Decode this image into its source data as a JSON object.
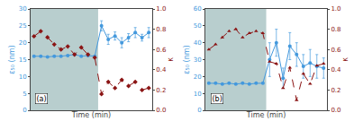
{
  "chart_data": [
    {
      "type": "line",
      "x": [
        0,
        1,
        2,
        3,
        4,
        5,
        6,
        7,
        8,
        9,
        10,
        11,
        12,
        13,
        14,
        15,
        16,
        17
      ],
      "xlabel": "Time (min)",
      "ylabel": "ε₅₀ (nm)",
      "y2label": "κ",
      "xlim": [
        -0.5,
        17.5
      ],
      "xticks": [],
      "ylim": [
        0,
        30
      ],
      "yticks": [
        0,
        5,
        10,
        15,
        20,
        25,
        30
      ],
      "y2lim": [
        0.0,
        1.0
      ],
      "y2ticks": [
        {
          "value": 0.0,
          "label": "0.0"
        },
        0.2,
        0.4,
        0.6,
        0.8,
        {
          "value": 1.0,
          "label": "1.0"
        }
      ],
      "tick_labels": "y",
      "grid": false,
      "series": [
        {
          "axis": "y2",
          "color": "#8B1515",
          "marker": "diamond",
          "line_style": "dashed",
          "values": [
            0.73,
            0.78,
            0.72,
            0.65,
            0.6,
            0.63,
            0.55,
            0.62,
            0.55,
            0.52,
            0.16,
            0.28,
            0.22,
            0.3,
            0.24,
            0.28,
            0.2,
            0.22
          ]
        },
        {
          "axis": "y",
          "color": "#4499dd",
          "marker": "circle",
          "line_style": "solid",
          "values": [
            16.0,
            16.0,
            15.8,
            16.0,
            16.0,
            16.2,
            16.5,
            16.0,
            16.2,
            16.0,
            25.0,
            21.0,
            22.0,
            20.0,
            21.5,
            23.0,
            21.5,
            23.0
          ],
          "errors": [
            0.0,
            0.0,
            0.0,
            0.0,
            0.0,
            0.0,
            0.0,
            0.0,
            0.0,
            0.0,
            1.5,
            1.5,
            1.2,
            1.5,
            1.2,
            1.5,
            1.0,
            1.5
          ]
        }
      ],
      "shaded_region": {
        "from": -0.5,
        "to": 9.5,
        "color": "#b8cece"
      },
      "annotations": [
        "(a)"
      ]
    },
    {
      "type": "line",
      "x": [
        0,
        1,
        2,
        3,
        4,
        5,
        6,
        7,
        8,
        9,
        10,
        11,
        12,
        13,
        14,
        15,
        16,
        17
      ],
      "xlabel": "Time (min)",
      "ylabel": "ε₅₀ (nm)",
      "y2label": "κ",
      "xlim": [
        -0.5,
        17.5
      ],
      "xticks": [],
      "ylim": [
        0,
        60
      ],
      "yticks": [
        0,
        10,
        20,
        30,
        40,
        50,
        60
      ],
      "y2lim": [
        0.0,
        1.0
      ],
      "y2ticks": [
        {
          "value": 0.0,
          "label": "0.0"
        },
        0.2,
        0.4,
        0.6,
        0.8,
        {
          "value": 1.0,
          "label": "1.0"
        }
      ],
      "tick_labels": "y",
      "grid": false,
      "series": [
        {
          "axis": "y2",
          "color": "#8B1515",
          "marker": "triangle-up",
          "line_style": "dashed",
          "values": [
            0.6,
            0.65,
            0.72,
            0.78,
            0.8,
            0.72,
            0.76,
            0.78,
            0.76,
            0.48,
            0.46,
            0.22,
            0.42,
            0.1,
            0.36,
            0.26,
            0.44,
            0.46
          ]
        },
        {
          "axis": "y",
          "color": "#4499dd",
          "marker": "circle",
          "line_style": "solid",
          "values": [
            16.0,
            16.0,
            15.5,
            16.0,
            15.5,
            16.0,
            15.5,
            16.0,
            16.0,
            30.0,
            40.0,
            19.0,
            38.0,
            33.0,
            26.0,
            28.0,
            26.0,
            25.0
          ],
          "errors": [
            0.0,
            0.0,
            0.0,
            0.0,
            0.0,
            0.0,
            0.0,
            0.0,
            0.0,
            10.0,
            8.0,
            6.0,
            8.0,
            7.0,
            7.0,
            8.0,
            7.0,
            6.0
          ]
        }
      ],
      "shaded_region": {
        "from": -0.5,
        "to": 8.5,
        "color": "#b8cece"
      },
      "annotations": [
        "(b)"
      ]
    }
  ]
}
